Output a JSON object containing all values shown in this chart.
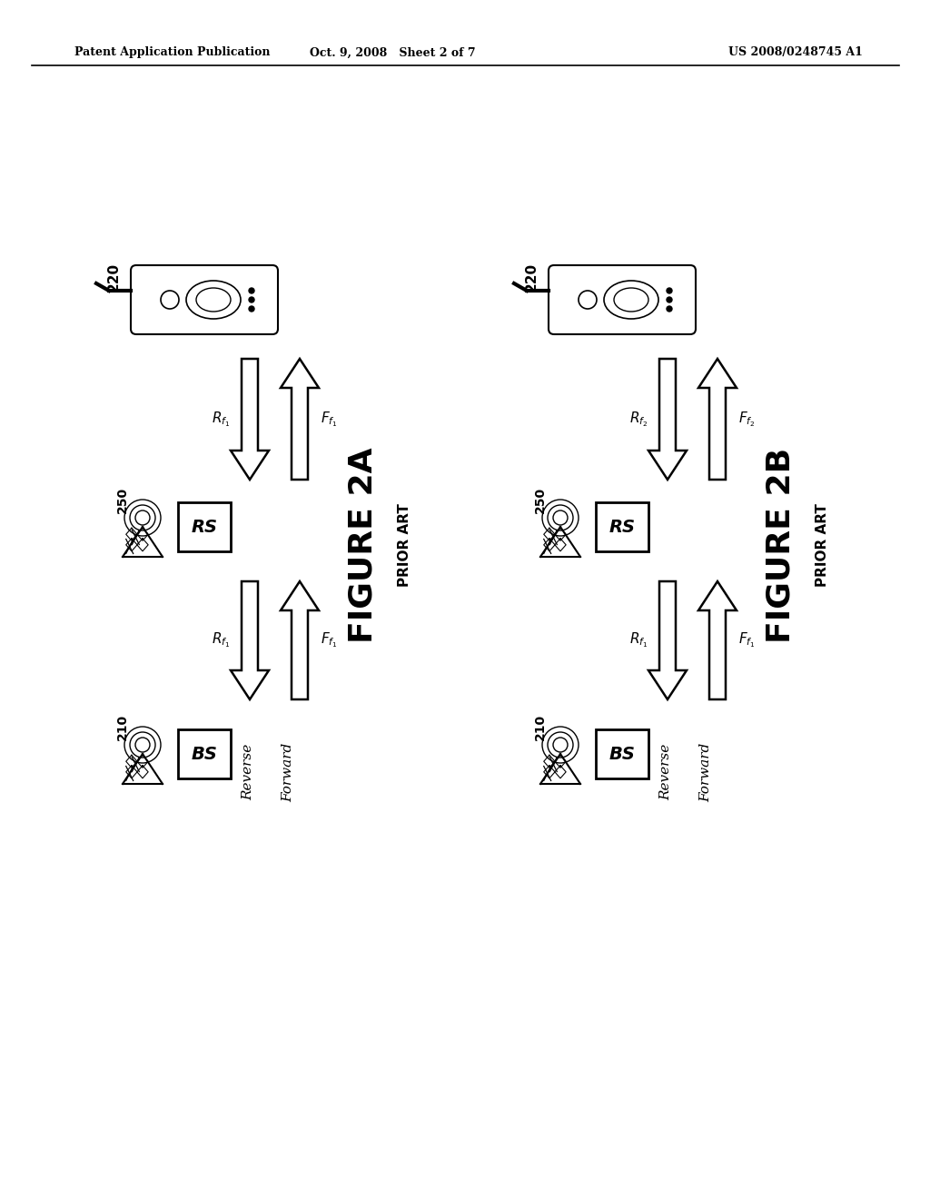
{
  "bg_color": "#ffffff",
  "header_left": "Patent Application Publication",
  "header_middle": "Oct. 9, 2008   Sheet 2 of 7",
  "header_right": "US 2008/0248745 A1",
  "fig2a": {
    "label": "FIGURE 2A",
    "sublabel": "PRIOR ART",
    "phone_label": "220",
    "rs_label": "250",
    "rs_text": "RS",
    "bs_label": "210",
    "bs_text": "BS",
    "upper_r_sub": "1",
    "upper_f_sub": "1",
    "lower_r_sub": "1",
    "lower_f_sub": "1",
    "reverse_label": "Reverse",
    "forward_label": "Forward"
  },
  "fig2b": {
    "label": "FIGURE 2B",
    "sublabel": "PRIOR ART",
    "phone_label": "220",
    "rs_label": "250",
    "rs_text": "RS",
    "bs_label": "210",
    "bs_text": "BS",
    "upper_r_sub": "2",
    "upper_f_sub": "2",
    "lower_r_sub": "1",
    "lower_f_sub": "1",
    "reverse_label": "Reverse",
    "forward_label": "Forward"
  }
}
